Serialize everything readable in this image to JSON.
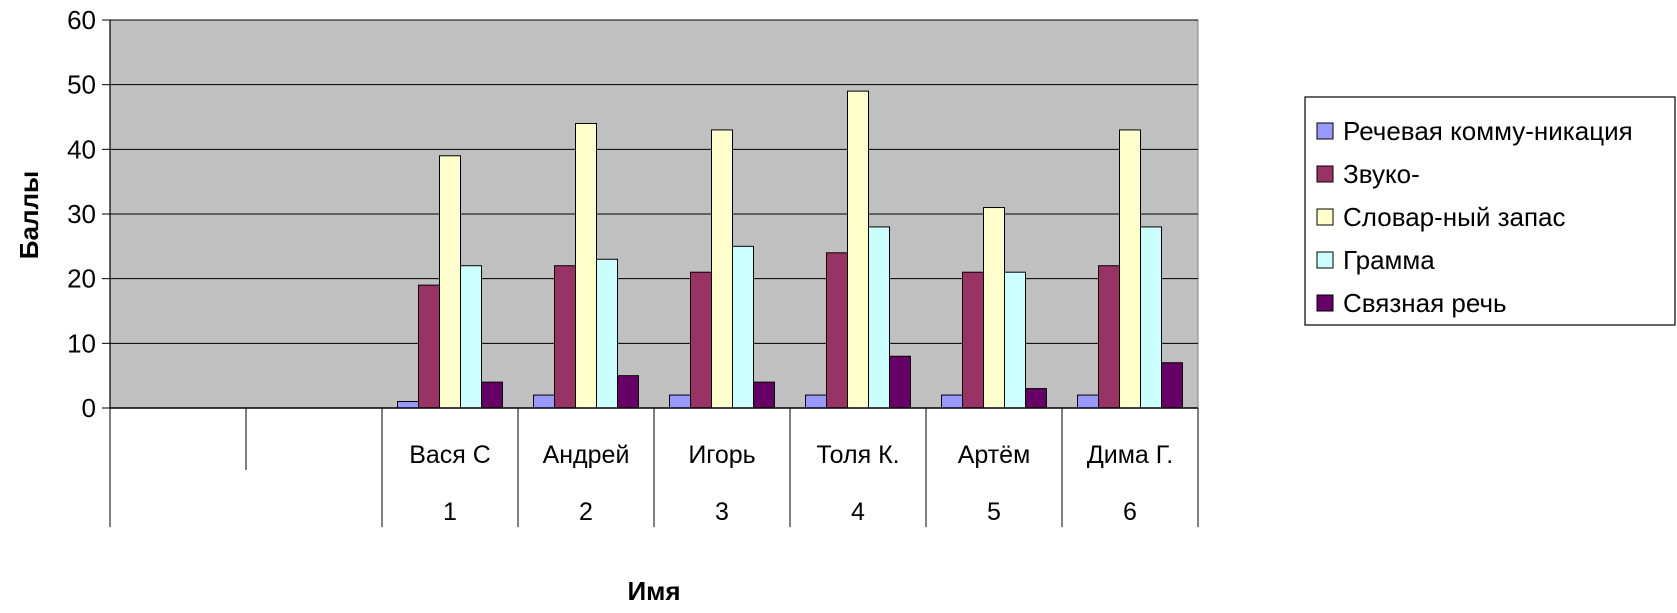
{
  "chart_data": {
    "type": "bar",
    "title": "",
    "xlabel": "Имя",
    "ylabel": "Баллы",
    "ylim": [
      0,
      60
    ],
    "yticks": [
      "0",
      "10",
      "20",
      "30",
      "40",
      "50",
      "60"
    ],
    "grid": true,
    "legend_position": "right",
    "plot_background": "#c0c0c0",
    "categories": [
      {
        "name": "",
        "number": ""
      },
      {
        "name": "",
        "number": ""
      },
      {
        "name": "Вася С",
        "number": "1"
      },
      {
        "name": "Андрей",
        "number": "2"
      },
      {
        "name": "Игорь",
        "number": "3"
      },
      {
        "name": "Толя К.",
        "number": "4"
      },
      {
        "name": "Артём",
        "number": "5"
      },
      {
        "name": "Дима Г.",
        "number": "6"
      }
    ],
    "series": [
      {
        "name": "Речевая комму-никация",
        "color": "#9999ff",
        "values": [
          null,
          null,
          1,
          2,
          2,
          2,
          2,
          2
        ]
      },
      {
        "name": "Звуко-",
        "color": "#993366",
        "values": [
          null,
          null,
          19,
          22,
          21,
          24,
          21,
          22
        ]
      },
      {
        "name": "Словар-ный запас",
        "color": "#ffffcc",
        "values": [
          null,
          null,
          39,
          44,
          43,
          49,
          31,
          43
        ]
      },
      {
        "name": "Грамма",
        "color": "#ccffff",
        "values": [
          null,
          null,
          22,
          23,
          25,
          28,
          21,
          28
        ]
      },
      {
        "name": "Связная речь",
        "color": "#660066",
        "values": [
          null,
          null,
          4,
          5,
          4,
          8,
          3,
          7
        ]
      }
    ]
  }
}
